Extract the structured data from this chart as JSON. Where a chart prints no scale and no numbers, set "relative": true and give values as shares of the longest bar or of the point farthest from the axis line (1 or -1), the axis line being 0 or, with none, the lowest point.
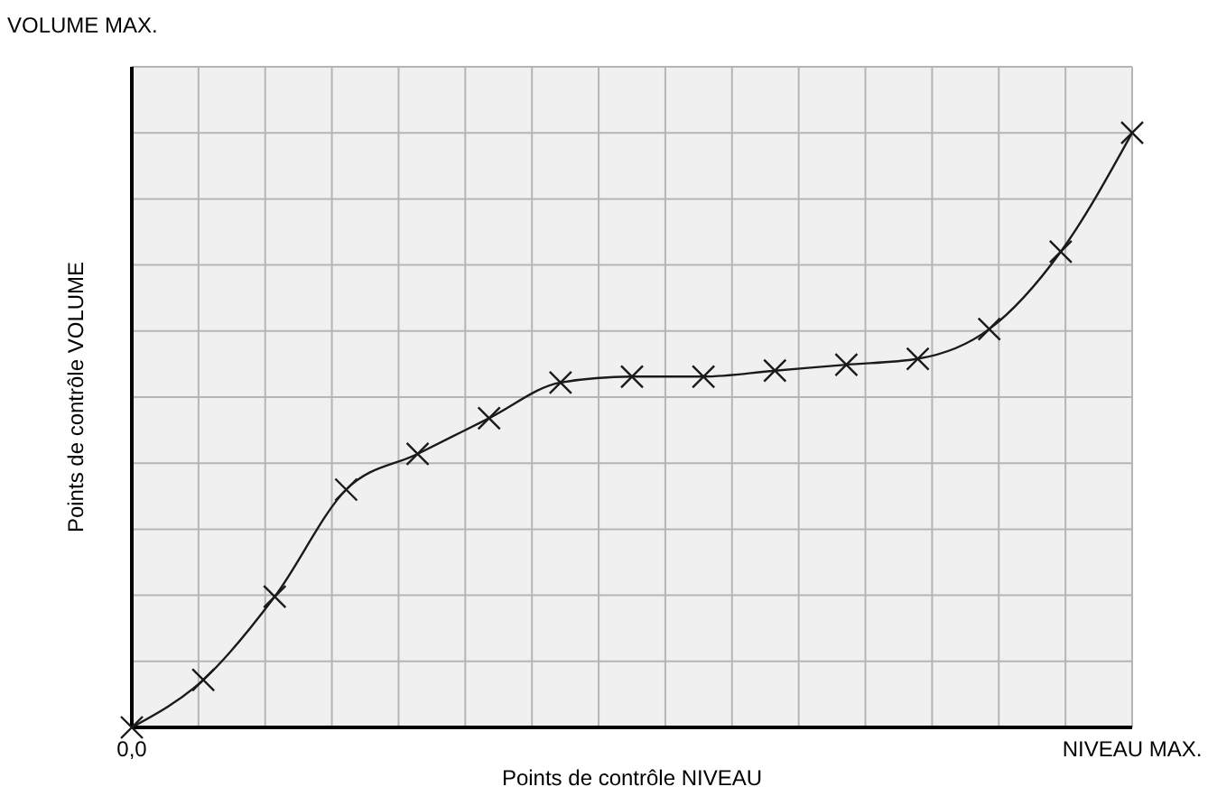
{
  "chart_data": {
    "type": "line",
    "relative": true,
    "xlabel": "Points de contrôle NIVEAU",
    "ylabel": "Points de contrôle VOLUME",
    "annotations": [
      "VOLUME MAX."
    ],
    "categories": [
      "0,0",
      null,
      null,
      null,
      null,
      null,
      null,
      null,
      null,
      null,
      null,
      null,
      null,
      null,
      "NIVEAU MAX."
    ],
    "series": [
      {
        "color": "#1a1a1a",
        "values": [
          0,
          0.08,
          0.22,
          0.4,
          0.46,
          0.52,
          0.58,
          0.59,
          0.59,
          0.6,
          0.61,
          0.62,
          0.67,
          0.8,
          1
        ]
      }
    ],
    "grid": true,
    "marker": "cross",
    "line_style": "solid"
  }
}
